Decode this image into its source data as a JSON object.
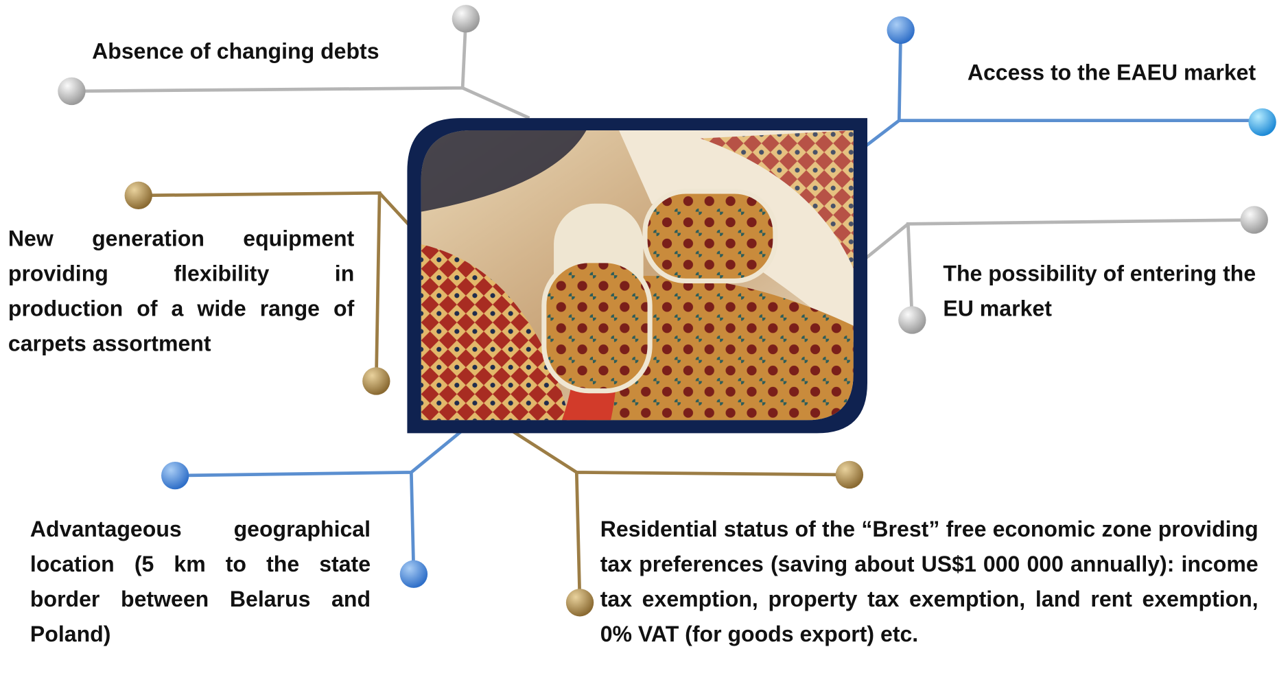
{
  "items": [
    {
      "text": "Absence of changing debts"
    },
    {
      "text": "Access to the EAEU market"
    },
    {
      "text": "New generation equipment providing flexibility in production of a wide range of carpets assortment"
    },
    {
      "text": "The possibility of entering the EU market"
    },
    {
      "text": "Advantageous geographical location (5 km to the state border between Belarus and Poland)"
    },
    {
      "text": "Residential status of the “Brest” free economic zone providing tax preferences (saving about US$1 000 000 annually): income tax exemption, property tax exemption, land rent exemption, 0% VAT (for goods export) etc."
    }
  ]
}
